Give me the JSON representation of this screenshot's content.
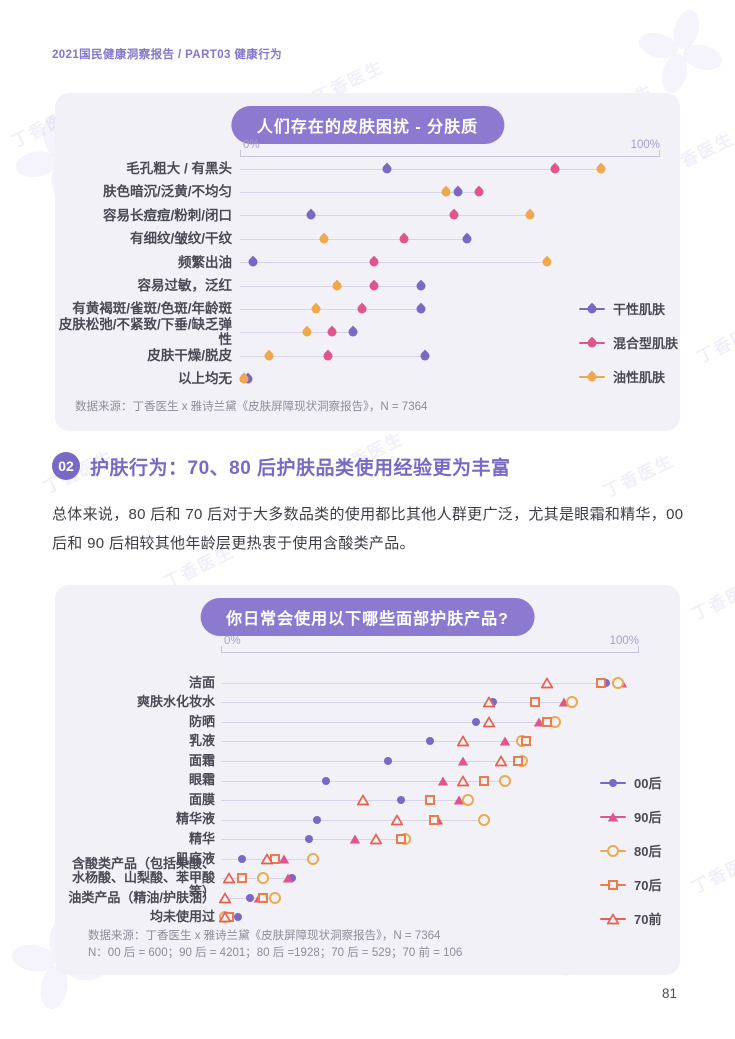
{
  "page": {
    "header": "2021国民健康洞察报告 / PART03 健康行为",
    "page_number": "81",
    "watermark_text": "丁香医生"
  },
  "colors": {
    "accent_purple": "#7a68c5",
    "pill_purple": "#8b7ad0",
    "card_background": "#f2f1f8",
    "dry_skin": "#7b68c5",
    "combination_skin": "#e0558d",
    "oily_skin": "#eda94e",
    "gen70s": "#ec7a4b",
    "pre70": "#e8604d"
  },
  "section": {
    "badge": "02",
    "title": "护肤行为：70、80 后护肤品类使用经验更为丰富",
    "body": "总体来说，80 后和 70 后对于大多数品类的使用都比其他人群更广泛，尤其是眼霜和精华，00 后和 90 后相较其他年龄层更热衷于使用含酸类产品。"
  },
  "chart_data": [
    {
      "type": "scatter",
      "title": "人们存在的皮肤困扰 - 分肤质",
      "axis": {
        "start_label": "0%",
        "end_label": "100%",
        "xlim": [
          0,
          100
        ]
      },
      "legend_position": "right",
      "grid": false,
      "categories": [
        "毛孔粗大 / 有黑头",
        "肤色暗沉/泛黄/不均匀",
        "容易长痘痘/粉刺/闭口",
        "有细纹/皱纹/干纹",
        "频繁出油",
        "容易过敏，泛红",
        "有黄褐斑/雀斑/色斑/年龄斑",
        "皮肤松弛/不紧致/下垂/缺乏弹性",
        "皮肤干燥/脱皮",
        "以上均无"
      ],
      "series": [
        {
          "name": "干性肌肤",
          "color": "#7b68c5",
          "marker": "drop",
          "values": [
            35,
            52,
            17,
            54,
            3,
            43,
            43,
            27,
            44,
            2
          ]
        },
        {
          "name": "混合型肌肤",
          "color": "#e0558d",
          "marker": "drop",
          "values": [
            75,
            57,
            51,
            39,
            32,
            32,
            29,
            22,
            21,
            1
          ]
        },
        {
          "name": "油性肌肤",
          "color": "#eda94e",
          "marker": "drop",
          "values": [
            86,
            49,
            69,
            20,
            73,
            23,
            18,
            16,
            7,
            1
          ]
        }
      ],
      "source": "数据来源：丁香医生 x 雅诗兰黛《皮肤屏障现状洞察报告》，N = 7364"
    },
    {
      "type": "scatter",
      "title": "你日常会使用以下哪些面部护肤产品?",
      "axis": {
        "start_label": "0%",
        "end_label": "100%",
        "xlim": [
          0,
          100
        ]
      },
      "legend_position": "right",
      "grid": false,
      "categories": [
        "洁面",
        "爽肤水化妆水",
        "防晒",
        "乳液",
        "面霜",
        "眼霜",
        "面膜",
        "精华液",
        "精华",
        "肌底液",
        "含酸类产品（包括果酸、\n水杨酸、山梨酸、苯甲酸等）",
        "油类产品（精油/护肤油）",
        "均未使用过"
      ],
      "series": [
        {
          "name": "00后",
          "color": "#7b68c5",
          "marker": "circle-filled",
          "values": [
            92,
            65,
            61,
            50,
            40,
            25,
            43,
            23,
            21,
            5,
            17,
            7,
            4
          ]
        },
        {
          "name": "90后",
          "color": "#e0558d",
          "marker": "triangle-filled",
          "values": [
            96,
            82,
            76,
            68,
            58,
            53,
            57,
            52,
            32,
            15,
            16,
            9,
            1
          ]
        },
        {
          "name": "80后",
          "color": "#eda94e",
          "marker": "circle-open",
          "values": [
            95,
            84,
            80,
            72,
            72,
            68,
            59,
            63,
            44,
            22,
            10,
            13,
            1
          ]
        },
        {
          "name": "70后",
          "color": "#ec7a4b",
          "marker": "square-open",
          "values": [
            91,
            75,
            78,
            73,
            71,
            63,
            50,
            51,
            43,
            13,
            5,
            10,
            2
          ]
        },
        {
          "name": "70前",
          "color": "#e8604d",
          "marker": "triangle-open",
          "values": [
            78,
            64,
            64,
            58,
            67,
            58,
            34,
            42,
            37,
            11,
            2,
            1,
            1
          ]
        }
      ],
      "source": "数据来源：丁香医生 x 雅诗兰黛《皮肤屏障现状洞察报告》，N = 7364",
      "source_n": "N：00 后 = 600；90 后 = 4201；80 后 =1928；70 后 = 529；70 前 = 106"
    }
  ]
}
